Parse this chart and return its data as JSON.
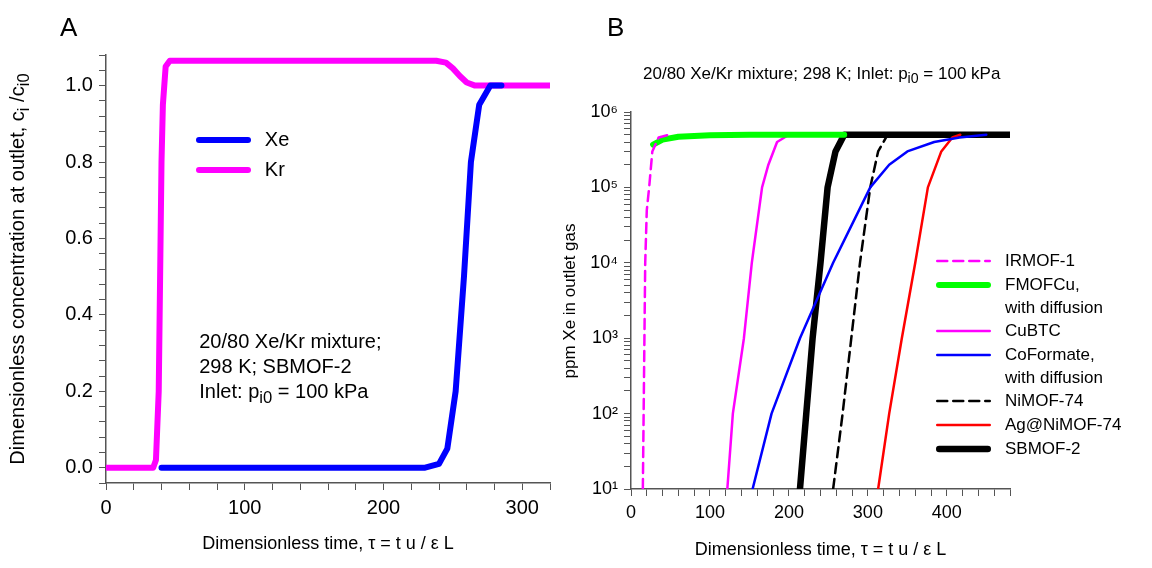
{
  "chart_data": [
    {
      "type": "line",
      "title": "A",
      "xlabel": "Dimensionless time, τ = t u / ε L",
      "ylabel": "Dimensionless concentration at outlet, c$_{i}$ /c$_{i0}$",
      "annotations": [
        "20/80 Xe/Kr mixture;\n298 K; SBMOF-2\nInlet: p$_{i0}$ = 100 kPa"
      ],
      "xlim": [
        0,
        320
      ],
      "xticks": [
        {
          "value": 0,
          "label": "0"
        },
        {
          "value": 20,
          "label": null
        },
        {
          "value": 40,
          "label": null
        },
        {
          "value": 60,
          "label": null
        },
        {
          "value": 80,
          "label": null
        },
        {
          "value": 100,
          "label": "100"
        },
        {
          "value": 120,
          "label": null
        },
        {
          "value": 140,
          "label": null
        },
        {
          "value": 160,
          "label": null
        },
        {
          "value": 180,
          "label": null
        },
        {
          "value": 200,
          "label": "200"
        },
        {
          "value": 220,
          "label": null
        },
        {
          "value": 240,
          "label": null
        },
        {
          "value": 260,
          "label": null
        },
        {
          "value": 280,
          "label": null
        },
        {
          "value": 300,
          "label": "300"
        },
        {
          "value": 320,
          "label": null
        }
      ],
      "ylim": [
        -0.04,
        1.08
      ],
      "yticks": [
        {
          "value": -0.04,
          "label": null
        },
        {
          "value": 0,
          "label": "0.0"
        },
        {
          "value": 0.04,
          "label": null
        },
        {
          "value": 0.08,
          "label": null
        },
        {
          "value": 0.12,
          "label": null
        },
        {
          "value": 0.16,
          "label": null
        },
        {
          "value": 0.2,
          "label": "0.2"
        },
        {
          "value": 0.24,
          "label": null
        },
        {
          "value": 0.28,
          "label": null
        },
        {
          "value": 0.32,
          "label": null
        },
        {
          "value": 0.36,
          "label": null
        },
        {
          "value": 0.4,
          "label": "0.4"
        },
        {
          "value": 0.44,
          "label": null
        },
        {
          "value": 0.48,
          "label": null
        },
        {
          "value": 0.52,
          "label": null
        },
        {
          "value": 0.56,
          "label": null
        },
        {
          "value": 0.6,
          "label": "0.6"
        },
        {
          "value": 0.64,
          "label": null
        },
        {
          "value": 0.68,
          "label": null
        },
        {
          "value": 0.72,
          "label": null
        },
        {
          "value": 0.76,
          "label": null
        },
        {
          "value": 0.8,
          "label": "0.8"
        },
        {
          "value": 0.84,
          "label": null
        },
        {
          "value": 0.88,
          "label": null
        },
        {
          "value": 0.92,
          "label": null
        },
        {
          "value": 0.96,
          "label": null
        },
        {
          "value": 1.0,
          "label": "1.0"
        },
        {
          "value": 1.04,
          "label": null
        },
        {
          "value": 1.08,
          "label": null
        }
      ],
      "grid": false,
      "legend": "top left",
      "marker": "none",
      "line_style": "solid",
      "series": [
        {
          "name": "Xe",
          "color": "#0000ff",
          "x": [
            40,
            150,
            230,
            240,
            246,
            252,
            258,
            263,
            269,
            277,
            285
          ],
          "values": [
            0,
            0,
            0,
            0.01,
            0.05,
            0.2,
            0.5,
            0.8,
            0.95,
            1.0,
            1.0
          ]
        },
        {
          "name": "Kr",
          "color": "#ff00ff",
          "x": [
            0,
            34,
            36,
            38,
            39,
            40,
            41,
            43,
            46,
            238,
            245,
            250,
            255,
            260,
            266,
            320
          ],
          "values": [
            0,
            0,
            0.02,
            0.2,
            0.5,
            0.8,
            0.95,
            1.05,
            1.065,
            1.065,
            1.06,
            1.045,
            1.025,
            1.008,
            1.0,
            1.0
          ]
        }
      ]
    },
    {
      "type": "line",
      "title": "B",
      "subtitle": "20/80 Xe/Kr mixture; 298 K;  Inlet: p$_{i0}$ = 100 kPa",
      "xlabel": "Dimensionless time, τ = t u / ε L",
      "ylabel": "ppm Xe in outlet gas",
      "log": "y",
      "xlim": [
        0,
        480
      ],
      "xticks": [
        {
          "value": 0,
          "label": "0"
        },
        {
          "value": 20,
          "label": null
        },
        {
          "value": 40,
          "label": null
        },
        {
          "value": 60,
          "label": null
        },
        {
          "value": 80,
          "label": null
        },
        {
          "value": 100,
          "label": "100"
        },
        {
          "value": 120,
          "label": null
        },
        {
          "value": 140,
          "label": null
        },
        {
          "value": 160,
          "label": null
        },
        {
          "value": 180,
          "label": null
        },
        {
          "value": 200,
          "label": "200"
        },
        {
          "value": 220,
          "label": null
        },
        {
          "value": 240,
          "label": null
        },
        {
          "value": 260,
          "label": null
        },
        {
          "value": 280,
          "label": null
        },
        {
          "value": 300,
          "label": "300"
        },
        {
          "value": 320,
          "label": null
        },
        {
          "value": 340,
          "label": null
        },
        {
          "value": 360,
          "label": null
        },
        {
          "value": 380,
          "label": null
        },
        {
          "value": 400,
          "label": "400"
        },
        {
          "value": 420,
          "label": null
        },
        {
          "value": 440,
          "label": null
        },
        {
          "value": 460,
          "label": null
        },
        {
          "value": 480,
          "label": null
        }
      ],
      "ylim": [
        10,
        1000000
      ],
      "yticks": [
        {
          "value": 10,
          "label": "10¹"
        },
        {
          "value": 20,
          "label": null
        },
        {
          "value": 30,
          "label": null
        },
        {
          "value": 40,
          "label": null
        },
        {
          "value": 50,
          "label": null
        },
        {
          "value": 60,
          "label": null
        },
        {
          "value": 70,
          "label": null
        },
        {
          "value": 80,
          "label": null
        },
        {
          "value": 90,
          "label": null
        },
        {
          "value": 100,
          "label": "10²"
        },
        {
          "value": 200,
          "label": null
        },
        {
          "value": 300,
          "label": null
        },
        {
          "value": 400,
          "label": null
        },
        {
          "value": 500,
          "label": null
        },
        {
          "value": 600,
          "label": null
        },
        {
          "value": 700,
          "label": null
        },
        {
          "value": 800,
          "label": null
        },
        {
          "value": 900,
          "label": null
        },
        {
          "value": 1000,
          "label": "10³"
        },
        {
          "value": 2000,
          "label": null
        },
        {
          "value": 3000,
          "label": null
        },
        {
          "value": 4000,
          "label": null
        },
        {
          "value": 5000,
          "label": null
        },
        {
          "value": 6000,
          "label": null
        },
        {
          "value": 7000,
          "label": null
        },
        {
          "value": 8000,
          "label": null
        },
        {
          "value": 9000,
          "label": null
        },
        {
          "value": 10000,
          "label": "10⁴"
        },
        {
          "value": 20000,
          "label": null
        },
        {
          "value": 30000,
          "label": null
        },
        {
          "value": 40000,
          "label": null
        },
        {
          "value": 50000,
          "label": null
        },
        {
          "value": 60000,
          "label": null
        },
        {
          "value": 70000,
          "label": null
        },
        {
          "value": 80000,
          "label": null
        },
        {
          "value": 90000,
          "label": null
        },
        {
          "value": 100000,
          "label": "10⁵"
        },
        {
          "value": 200000,
          "label": null
        },
        {
          "value": 300000,
          "label": null
        },
        {
          "value": 400000,
          "label": null
        },
        {
          "value": 500000,
          "label": null
        },
        {
          "value": 600000,
          "label": null
        },
        {
          "value": 700000,
          "label": null
        },
        {
          "value": 800000,
          "label": null
        },
        {
          "value": 900000,
          "label": null
        },
        {
          "value": 1000000,
          "label": "10⁶"
        }
      ],
      "grid": false,
      "legend": "bottom right",
      "marker": "none",
      "series": [
        {
          "name": "IRMOF-1",
          "color": "#ff00ff",
          "line_style": "dashed",
          "x": [
            15,
            16,
            17,
            18,
            20,
            23,
            27,
            35,
            48
          ],
          "values": [
            10,
            100,
            1000,
            10000,
            50000,
            100000,
            300000,
            460000,
            500000
          ]
        },
        {
          "name": "FMOFCu, with diffusion",
          "color": "#00ff00",
          "line_style": "solid",
          "x": [
            28,
            40,
            60,
            100,
            150,
            270
          ],
          "values": [
            370000,
            430000,
            470000,
            490000,
            500000,
            500000
          ]
        },
        {
          "name": "CuBTC",
          "color": "#ff00ff",
          "line_style": "solid",
          "x": [
            122,
            129,
            143,
            153,
            166,
            174,
            185,
            200
          ],
          "values": [
            10,
            100,
            1000,
            10000,
            100000,
            200000,
            400000,
            500000
          ]
        },
        {
          "name": "CoFormate, with diffusion",
          "color": "#0000ff",
          "line_style": "solid",
          "x": [
            154,
            178,
            214,
            256,
            303,
            327,
            350,
            384,
            416,
            450
          ],
          "values": [
            10,
            100,
            1000,
            10000,
            100000,
            200000,
            300000,
            400000,
            460000,
            500000
          ]
        },
        {
          "name": "NiMOF-74",
          "color": "#000000",
          "line_style": "dashed",
          "x": [
            256,
            268,
            279,
            290,
            303,
            313,
            325
          ],
          "values": [
            10,
            100,
            1000,
            10000,
            100000,
            300000,
            500000
          ]
        },
        {
          "name": "Ag@NiMOF-74",
          "color": "#ff0000",
          "line_style": "solid",
          "x": [
            313,
            327,
            343,
            360,
            376,
            393,
            407,
            417
          ],
          "values": [
            10,
            100,
            1000,
            10000,
            100000,
            300000,
            460000,
            500000
          ]
        },
        {
          "name": "SBMOF-2",
          "color": "#000000",
          "line_style": "solid",
          "x": [
            214,
            222,
            230,
            240,
            249,
            259,
            270,
            480
          ],
          "values": [
            10,
            100,
            1000,
            10000,
            100000,
            300000,
            500000,
            500000
          ]
        }
      ]
    }
  ]
}
